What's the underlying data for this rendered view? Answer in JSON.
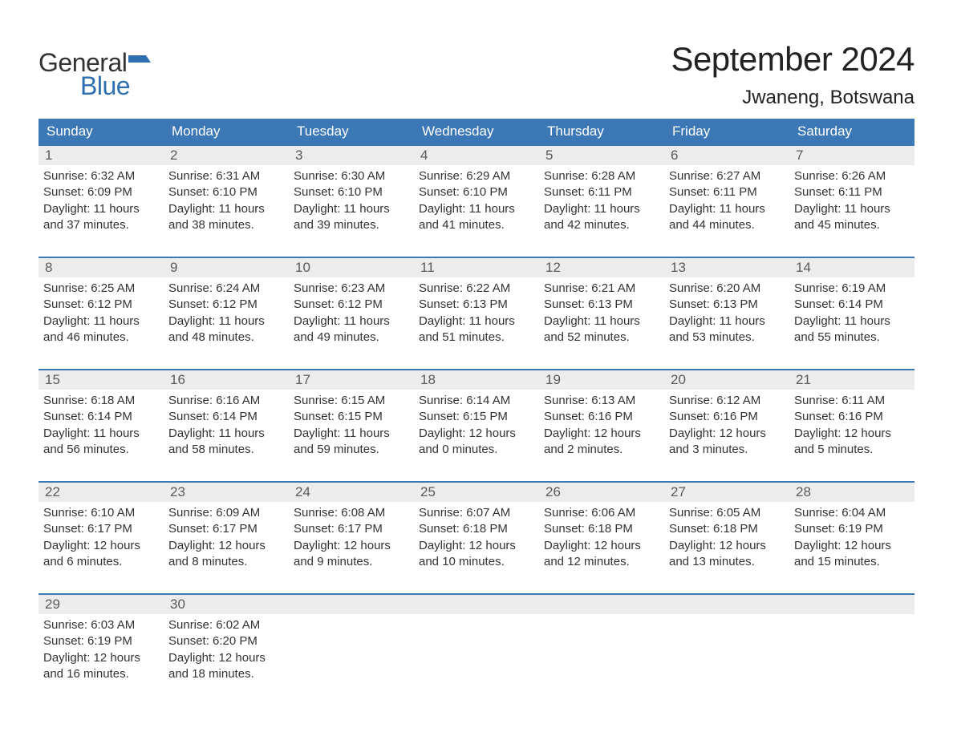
{
  "brand": {
    "word1": "General",
    "word2": "Blue",
    "word1_color": "#333333",
    "word2_color": "#2f6fb0",
    "flag_color": "#2f6fb0"
  },
  "title": "September 2024",
  "location": "Jwaneng, Botswana",
  "colors": {
    "header_bg": "#3b78b5",
    "header_text": "#ffffff",
    "row_divider": "#3b78b5",
    "daynum_bg": "#ececec",
    "daynum_text": "#5a5a5a",
    "body_text": "#333333",
    "page_bg": "#ffffff"
  },
  "dayHeaders": [
    "Sunday",
    "Monday",
    "Tuesday",
    "Wednesday",
    "Thursday",
    "Friday",
    "Saturday"
  ],
  "weeks": [
    [
      {
        "n": "1",
        "sunrise": "6:32 AM",
        "sunset": "6:09 PM",
        "daylight": "11 hours and 37 minutes."
      },
      {
        "n": "2",
        "sunrise": "6:31 AM",
        "sunset": "6:10 PM",
        "daylight": "11 hours and 38 minutes."
      },
      {
        "n": "3",
        "sunrise": "6:30 AM",
        "sunset": "6:10 PM",
        "daylight": "11 hours and 39 minutes."
      },
      {
        "n": "4",
        "sunrise": "6:29 AM",
        "sunset": "6:10 PM",
        "daylight": "11 hours and 41 minutes."
      },
      {
        "n": "5",
        "sunrise": "6:28 AM",
        "sunset": "6:11 PM",
        "daylight": "11 hours and 42 minutes."
      },
      {
        "n": "6",
        "sunrise": "6:27 AM",
        "sunset": "6:11 PM",
        "daylight": "11 hours and 44 minutes."
      },
      {
        "n": "7",
        "sunrise": "6:26 AM",
        "sunset": "6:11 PM",
        "daylight": "11 hours and 45 minutes."
      }
    ],
    [
      {
        "n": "8",
        "sunrise": "6:25 AM",
        "sunset": "6:12 PM",
        "daylight": "11 hours and 46 minutes."
      },
      {
        "n": "9",
        "sunrise": "6:24 AM",
        "sunset": "6:12 PM",
        "daylight": "11 hours and 48 minutes."
      },
      {
        "n": "10",
        "sunrise": "6:23 AM",
        "sunset": "6:12 PM",
        "daylight": "11 hours and 49 minutes."
      },
      {
        "n": "11",
        "sunrise": "6:22 AM",
        "sunset": "6:13 PM",
        "daylight": "11 hours and 51 minutes."
      },
      {
        "n": "12",
        "sunrise": "6:21 AM",
        "sunset": "6:13 PM",
        "daylight": "11 hours and 52 minutes."
      },
      {
        "n": "13",
        "sunrise": "6:20 AM",
        "sunset": "6:13 PM",
        "daylight": "11 hours and 53 minutes."
      },
      {
        "n": "14",
        "sunrise": "6:19 AM",
        "sunset": "6:14 PM",
        "daylight": "11 hours and 55 minutes."
      }
    ],
    [
      {
        "n": "15",
        "sunrise": "6:18 AM",
        "sunset": "6:14 PM",
        "daylight": "11 hours and 56 minutes."
      },
      {
        "n": "16",
        "sunrise": "6:16 AM",
        "sunset": "6:14 PM",
        "daylight": "11 hours and 58 minutes."
      },
      {
        "n": "17",
        "sunrise": "6:15 AM",
        "sunset": "6:15 PM",
        "daylight": "11 hours and 59 minutes."
      },
      {
        "n": "18",
        "sunrise": "6:14 AM",
        "sunset": "6:15 PM",
        "daylight": "12 hours and 0 minutes."
      },
      {
        "n": "19",
        "sunrise": "6:13 AM",
        "sunset": "6:16 PM",
        "daylight": "12 hours and 2 minutes."
      },
      {
        "n": "20",
        "sunrise": "6:12 AM",
        "sunset": "6:16 PM",
        "daylight": "12 hours and 3 minutes."
      },
      {
        "n": "21",
        "sunrise": "6:11 AM",
        "sunset": "6:16 PM",
        "daylight": "12 hours and 5 minutes."
      }
    ],
    [
      {
        "n": "22",
        "sunrise": "6:10 AM",
        "sunset": "6:17 PM",
        "daylight": "12 hours and 6 minutes."
      },
      {
        "n": "23",
        "sunrise": "6:09 AM",
        "sunset": "6:17 PM",
        "daylight": "12 hours and 8 minutes."
      },
      {
        "n": "24",
        "sunrise": "6:08 AM",
        "sunset": "6:17 PM",
        "daylight": "12 hours and 9 minutes."
      },
      {
        "n": "25",
        "sunrise": "6:07 AM",
        "sunset": "6:18 PM",
        "daylight": "12 hours and 10 minutes."
      },
      {
        "n": "26",
        "sunrise": "6:06 AM",
        "sunset": "6:18 PM",
        "daylight": "12 hours and 12 minutes."
      },
      {
        "n": "27",
        "sunrise": "6:05 AM",
        "sunset": "6:18 PM",
        "daylight": "12 hours and 13 minutes."
      },
      {
        "n": "28",
        "sunrise": "6:04 AM",
        "sunset": "6:19 PM",
        "daylight": "12 hours and 15 minutes."
      }
    ],
    [
      {
        "n": "29",
        "sunrise": "6:03 AM",
        "sunset": "6:19 PM",
        "daylight": "12 hours and 16 minutes."
      },
      {
        "n": "30",
        "sunrise": "6:02 AM",
        "sunset": "6:20 PM",
        "daylight": "12 hours and 18 minutes."
      },
      null,
      null,
      null,
      null,
      null
    ]
  ],
  "labels": {
    "sunrise": "Sunrise: ",
    "sunset": "Sunset: ",
    "daylight": "Daylight: "
  }
}
